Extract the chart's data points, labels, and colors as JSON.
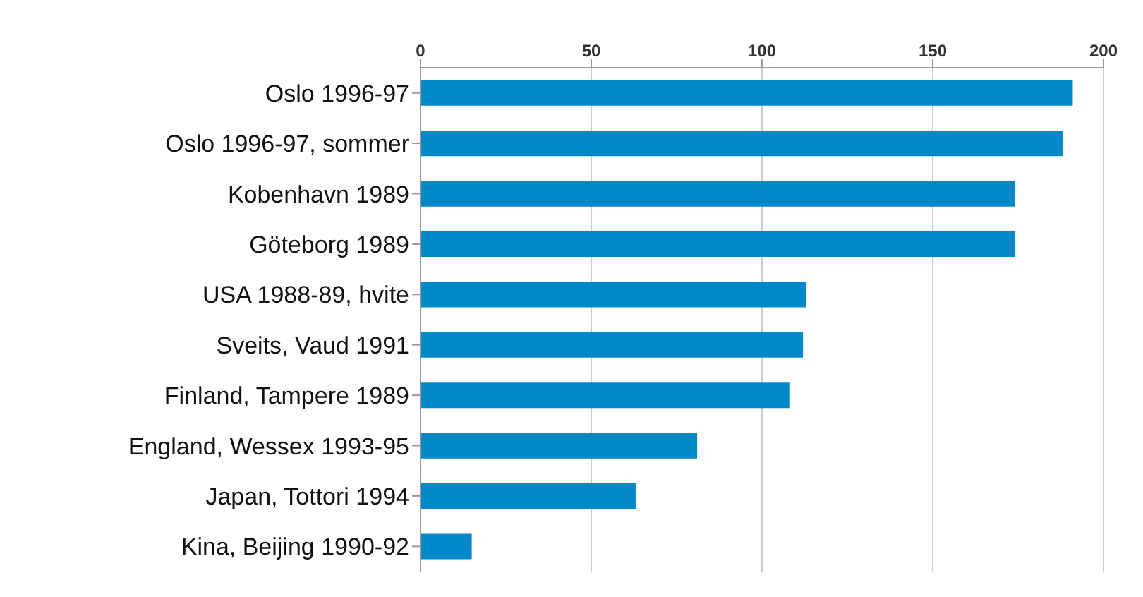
{
  "chart_data": {
    "type": "bar",
    "orientation": "horizontal",
    "categories": [
      "Oslo 1996-97",
      "Oslo 1996-97, sommer",
      "Kobenhavn 1989",
      "Göteborg 1989",
      "USA 1988-89, hvite",
      "Sveits, Vaud 1991",
      "Finland, Tampere 1989",
      "England, Wessex 1993-95",
      "Japan, Tottori 1994",
      "Kina, Beijing 1990-92"
    ],
    "values": [
      191,
      188,
      174,
      174,
      113,
      112,
      108,
      81,
      63,
      15
    ],
    "color": "#0088c8",
    "xlim": [
      0,
      200
    ],
    "xticks": [
      0,
      50,
      100,
      150,
      200
    ],
    "grid": "x"
  }
}
